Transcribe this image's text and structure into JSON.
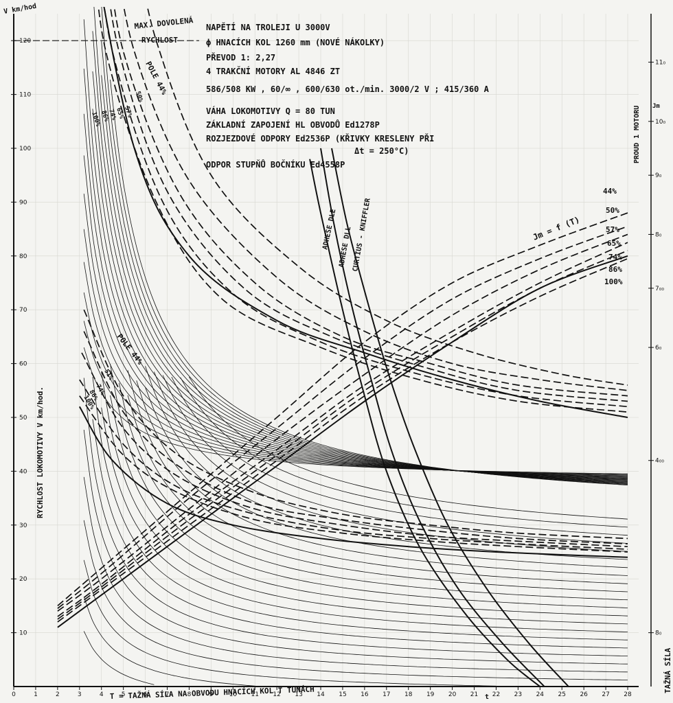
{
  "chart_data": {
    "type": "line",
    "x_ticks": [
      0,
      1,
      2,
      3,
      4,
      5,
      6,
      7,
      8,
      9,
      10,
      11,
      12,
      13,
      14,
      15,
      16,
      17,
      18,
      19,
      20,
      21,
      22,
      23,
      24,
      25,
      26,
      27,
      28
    ],
    "y_ticks": [
      10,
      20,
      30,
      40,
      50,
      60,
      70,
      80,
      90,
      100,
      110,
      120
    ],
    "right_ticks": [
      {
        "v": 10,
        "label": "8₀"
      },
      {
        "v": 42,
        "label": "4₀₀"
      },
      {
        "v": 63,
        "label": "6₀"
      },
      {
        "v": 74,
        "label": "7₀₀"
      },
      {
        "v": 84,
        "label": "8₀"
      },
      {
        "v": 95,
        "label": "9₀"
      },
      {
        "v": 105,
        "label": "10₀"
      },
      {
        "v": 116,
        "label": "11₀"
      }
    ],
    "xlim": [
      0,
      28.5
    ],
    "ylim": [
      0,
      125
    ],
    "xlabel": "T = TAŽNÁ SÍLA NA OBVODU HNACÍCH KOL  T TUNÁCH",
    "ylabel": "RYCHLOST LOKOMOTIVY  V km/hod.",
    "y_unit": "V km/hod",
    "right_label": "PROUD 1 MOTORU",
    "right_unit": "Jm",
    "bottom_right_label": "TAŽNÁ SÍLA",
    "x_sub": "t",
    "max_speed": {
      "value": 120,
      "label_1": "MAX. DOVOLENÁ",
      "label_2": "RYCHLOST"
    },
    "info_lines": [
      "NAPĚTÍ NA TROLEJI U 3000V",
      "ϕ HNACÍCH KOL  1260 mm  (NOVÉ NÁKOLKY)",
      "PŘEVOD  1: 2,27",
      "4 TRAKČNÍ MOTORY AL 4846 ZT",
      "586/508 KW ,  60/∞ ,  600/630 ot./min.  3000/2 V ;  415/360 A",
      "VÁHA  LOKOMOTIVY  Q = 80 TUN",
      "ZÁKLADNÍ  ZAPOJENÍ  HL OBVODŮ  Ed1278P",
      "ROZJEZDOVÉ ODPORY Ed2536P (KŘIVKY KRESLENY PŘI",
      "Δt = 250°C)",
      "ODPOR  STUPŇŮ  BOČNÍKU  Ed4558P"
    ],
    "field_labels_high": {
      "pole": "POLE 44%",
      "steps": [
        "50%",
        "57%",
        "65%",
        "74%",
        "86%",
        "100%"
      ]
    },
    "field_labels_low": {
      "pole": "POLE 44%",
      "steps": [
        "51%",
        "74%",
        "86%",
        "100%"
      ]
    },
    "current_label": "Jm = f (T)",
    "current_percents": [
      "44%",
      "50%",
      "57%",
      "65%",
      "74%",
      "86%",
      "100%"
    ],
    "adhesion_labels": [
      "ADHESE DLE",
      "ADHESE DLL",
      "CURTIUS - KNIFFLER"
    ],
    "series": [
      {
        "kind": "speed-high",
        "style": "solid",
        "points": [
          [
            3.5,
            140
          ],
          [
            5.5,
            100
          ],
          [
            8,
            80
          ],
          [
            12,
            68
          ],
          [
            16,
            62
          ],
          [
            20,
            57
          ],
          [
            24,
            53
          ],
          [
            28,
            50
          ]
        ]
      },
      {
        "kind": "speed-high",
        "style": "dashed",
        "points": [
          [
            5.5,
            140
          ],
          [
            6.5,
            120
          ],
          [
            9,
            95
          ],
          [
            13,
            78
          ],
          [
            17,
            68
          ],
          [
            21,
            62
          ],
          [
            25,
            58
          ],
          [
            28,
            56
          ]
        ]
      },
      {
        "kind": "speed-high",
        "style": "dashed",
        "points": [
          [
            4.5,
            140
          ],
          [
            5.5,
            118
          ],
          [
            8,
            94
          ],
          [
            12,
            76
          ],
          [
            16,
            66
          ],
          [
            20,
            60
          ],
          [
            24,
            57
          ],
          [
            28,
            55
          ]
        ]
      },
      {
        "kind": "speed-high",
        "style": "dashed",
        "points": [
          [
            4.2,
            140
          ],
          [
            5,
            118
          ],
          [
            7.5,
            92
          ],
          [
            11,
            75
          ],
          [
            15,
            65
          ],
          [
            19,
            60
          ],
          [
            23,
            56
          ],
          [
            28,
            54
          ]
        ]
      },
      {
        "kind": "speed-high",
        "style": "dashed",
        "points": [
          [
            4,
            140
          ],
          [
            4.8,
            118
          ],
          [
            7,
            92
          ],
          [
            10.5,
            74
          ],
          [
            14.5,
            65
          ],
          [
            19,
            59
          ],
          [
            23,
            55
          ],
          [
            28,
            53
          ]
        ]
      },
      {
        "kind": "speed-high",
        "style": "dashed",
        "points": [
          [
            3.8,
            140
          ],
          [
            4.5,
            118
          ],
          [
            6.8,
            90
          ],
          [
            10,
            73
          ],
          [
            14,
            64
          ],
          [
            18.5,
            58
          ],
          [
            23,
            54
          ],
          [
            28,
            52
          ]
        ]
      },
      {
        "kind": "speed-high",
        "style": "dashed",
        "points": [
          [
            3.6,
            140
          ],
          [
            4.2,
            118
          ],
          [
            6.5,
            90
          ],
          [
            9.5,
            72
          ],
          [
            14,
            63
          ],
          [
            18.5,
            57
          ],
          [
            23,
            53
          ],
          [
            28,
            51
          ]
        ]
      },
      {
        "kind": "speed-low",
        "style": "solid",
        "points": [
          [
            3,
            52
          ],
          [
            4.5,
            42
          ],
          [
            7,
            34
          ],
          [
            10,
            30
          ],
          [
            14,
            27.5
          ],
          [
            18,
            26
          ],
          [
            22,
            25
          ],
          [
            28,
            24
          ]
        ]
      },
      {
        "kind": "speed-low",
        "style": "dashed",
        "points": [
          [
            3.2,
            70
          ],
          [
            5,
            54
          ],
          [
            7.5,
            43
          ],
          [
            11,
            36
          ],
          [
            15,
            32
          ],
          [
            19,
            30
          ],
          [
            23,
            28.5
          ],
          [
            28,
            27.5
          ]
        ]
      },
      {
        "kind": "speed-low",
        "style": "dashed",
        "points": [
          [
            3.2,
            66
          ],
          [
            5,
            51
          ],
          [
            7.5,
            41
          ],
          [
            11,
            34
          ],
          [
            15,
            31
          ],
          [
            19,
            29
          ],
          [
            23,
            27.5
          ],
          [
            28,
            26.5
          ]
        ]
      },
      {
        "kind": "speed-low",
        "style": "dashed",
        "points": [
          [
            3.1,
            62
          ],
          [
            5,
            48
          ],
          [
            7.5,
            39
          ],
          [
            11,
            33
          ],
          [
            15,
            30
          ],
          [
            19,
            28
          ],
          [
            23,
            27
          ],
          [
            28,
            26
          ]
        ]
      },
      {
        "kind": "speed-low",
        "style": "dashed",
        "points": [
          [
            3,
            57
          ],
          [
            5,
            45
          ],
          [
            7.5,
            37
          ],
          [
            11,
            32
          ],
          [
            15,
            29
          ],
          [
            19,
            27.5
          ],
          [
            23,
            26.5
          ],
          [
            28,
            25.5
          ]
        ]
      },
      {
        "kind": "speed-low",
        "style": "dashed",
        "points": [
          [
            3,
            54
          ],
          [
            5,
            43
          ],
          [
            7.5,
            36
          ],
          [
            11,
            31
          ],
          [
            15,
            28.5
          ],
          [
            19,
            27
          ],
          [
            23,
            26
          ],
          [
            28,
            25
          ]
        ]
      },
      {
        "kind": "current",
        "style": "solid",
        "points": [
          [
            2,
            11
          ],
          [
            4,
            17
          ],
          [
            8,
            29
          ],
          [
            12,
            41
          ],
          [
            16,
            53
          ],
          [
            20,
            64
          ],
          [
            24,
            74
          ],
          [
            28,
            80
          ]
        ]
      },
      {
        "kind": "current",
        "style": "dashed",
        "points": [
          [
            2,
            15
          ],
          [
            4,
            22
          ],
          [
            8,
            36
          ],
          [
            12,
            50
          ],
          [
            16,
            64
          ],
          [
            20,
            75
          ],
          [
            24,
            82
          ],
          [
            28,
            88
          ]
        ]
      },
      {
        "kind": "current",
        "style": "dashed",
        "points": [
          [
            2,
            14.5
          ],
          [
            4,
            21
          ],
          [
            8,
            35
          ],
          [
            12,
            48
          ],
          [
            16,
            61
          ],
          [
            20,
            72
          ],
          [
            24,
            79.5
          ],
          [
            28,
            85.5
          ]
        ]
      },
      {
        "kind": "current",
        "style": "dashed",
        "points": [
          [
            2,
            14
          ],
          [
            4,
            20
          ],
          [
            8,
            33
          ],
          [
            12,
            46
          ],
          [
            16,
            58
          ],
          [
            20,
            69
          ],
          [
            24,
            77.5
          ],
          [
            28,
            84
          ]
        ]
      },
      {
        "kind": "current",
        "style": "dashed",
        "points": [
          [
            2,
            13
          ],
          [
            4,
            19
          ],
          [
            8,
            32
          ],
          [
            12,
            44
          ],
          [
            16,
            56
          ],
          [
            20,
            66
          ],
          [
            24,
            75
          ],
          [
            28,
            82.5
          ]
        ]
      },
      {
        "kind": "current",
        "style": "dashed",
        "points": [
          [
            2,
            12.5
          ],
          [
            4,
            18.5
          ],
          [
            8,
            31
          ],
          [
            12,
            43
          ],
          [
            16,
            55
          ],
          [
            20,
            65
          ],
          [
            24,
            74
          ],
          [
            28,
            81
          ]
        ]
      },
      {
        "kind": "current",
        "style": "dashed",
        "points": [
          [
            2,
            12
          ],
          [
            4,
            18
          ],
          [
            8,
            30
          ],
          [
            12,
            42
          ],
          [
            16,
            54
          ],
          [
            20,
            64
          ],
          [
            24,
            72.5
          ],
          [
            28,
            79.5
          ]
        ]
      },
      {
        "kind": "adhesion",
        "style": "solid",
        "points": [
          [
            13.5,
            98
          ],
          [
            14,
            88
          ],
          [
            15,
            70
          ],
          [
            16,
            54
          ],
          [
            17,
            40
          ],
          [
            18.5,
            26
          ],
          [
            20.5,
            14
          ],
          [
            22.5,
            5
          ],
          [
            24,
            0
          ]
        ]
      },
      {
        "kind": "adhesion",
        "style": "solid",
        "points": [
          [
            14,
            100
          ],
          [
            14.6,
            86
          ],
          [
            15.4,
            71
          ],
          [
            16.3,
            57
          ],
          [
            17.3,
            43
          ],
          [
            18.6,
            30
          ],
          [
            20.3,
            18
          ],
          [
            22.3,
            8
          ],
          [
            24.2,
            0
          ]
        ]
      },
      {
        "kind": "adhesion",
        "style": "solid",
        "points": [
          [
            14.5,
            100
          ],
          [
            15.2,
            86
          ],
          [
            16.1,
            72
          ],
          [
            17.1,
            58
          ],
          [
            18.3,
            44
          ],
          [
            19.8,
            30
          ],
          [
            21.6,
            18
          ],
          [
            23.5,
            8
          ],
          [
            25.3,
            0
          ]
        ]
      }
    ]
  }
}
